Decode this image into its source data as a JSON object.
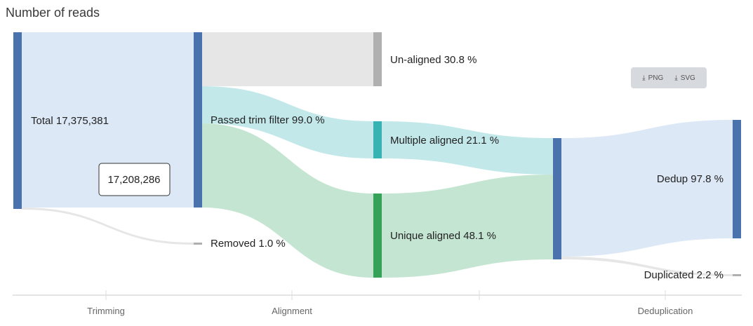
{
  "title": "Number of reads",
  "export": {
    "png_label": "PNG",
    "svg_label": "SVG"
  },
  "tooltip": {
    "value": "17,208,286"
  },
  "axis": {
    "stages": [
      {
        "label": "Trimming"
      },
      {
        "label": "Alignment"
      },
      {
        "label": ""
      },
      {
        "label": "Deduplication"
      }
    ]
  },
  "chart_data": {
    "type": "sankey",
    "title": "Number of reads",
    "stages": [
      "Trimming",
      "Alignment",
      "",
      "Deduplication"
    ],
    "nodes": [
      {
        "id": "total",
        "label": "Total 17,375,381",
        "value": 17375381,
        "color": "#4a72ad"
      },
      {
        "id": "passed",
        "label": "Passed trim filter 99.0 %",
        "percent": 99.0,
        "color": "#4a72ad"
      },
      {
        "id": "removed",
        "label": "Removed 1.0 %",
        "percent": 1.0,
        "color": "#b0b0b0"
      },
      {
        "id": "unaligned",
        "label": "Un-aligned 30.8 %",
        "percent": 30.8,
        "color": "#b0b0b0"
      },
      {
        "id": "multiple",
        "label": "Multiple aligned 21.1 %",
        "percent": 21.1,
        "color": "#37b3b3"
      },
      {
        "id": "unique",
        "label": "Unique aligned 48.1 %",
        "percent": 48.1,
        "color": "#36a257"
      },
      {
        "id": "aligned",
        "label": "",
        "color": "#4a72ad"
      },
      {
        "id": "dedup",
        "label": "Dedup 97.8 %",
        "percent": 97.8,
        "color": "#4a72ad"
      },
      {
        "id": "duplicated",
        "label": "Duplicated 2.2 %",
        "percent": 2.2,
        "color": "#b0b0b0"
      }
    ],
    "links": [
      {
        "source": "total",
        "target": "passed",
        "percent": 99.0,
        "color": "#dce8f6"
      },
      {
        "source": "total",
        "target": "removed",
        "percent": 1.0,
        "color": "#e6e6e6"
      },
      {
        "source": "passed",
        "target": "unaligned",
        "percent": 30.8,
        "color": "#e6e6e6"
      },
      {
        "source": "passed",
        "target": "multiple",
        "percent": 21.1,
        "color": "#c2e8ea"
      },
      {
        "source": "passed",
        "target": "unique",
        "percent": 48.1,
        "color": "#c4e5d2"
      },
      {
        "source": "multiple",
        "target": "aligned",
        "percent": 21.1,
        "color": "#c2e8ea"
      },
      {
        "source": "unique",
        "target": "aligned",
        "percent": 48.1,
        "color": "#c4e5d2"
      },
      {
        "source": "aligned",
        "target": "dedup",
        "percent": 97.8,
        "color": "#dce8f6"
      },
      {
        "source": "aligned",
        "target": "duplicated",
        "percent": 2.2,
        "color": "#e6e6e6"
      }
    ]
  }
}
